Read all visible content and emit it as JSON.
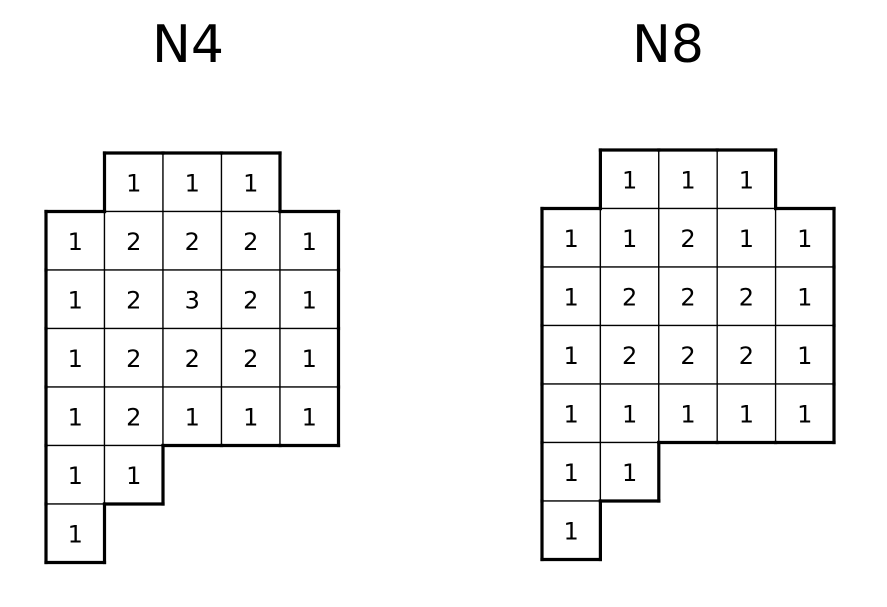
{
  "grids": [
    {
      "title": "N4",
      "rows": [
        [
          "",
          "1",
          "1",
          "1",
          ""
        ],
        [
          "1",
          "2",
          "2",
          "2",
          "1"
        ],
        [
          "1",
          "2",
          "3",
          "2",
          "1"
        ],
        [
          "1",
          "2",
          "2",
          "2",
          "1"
        ],
        [
          "1",
          "2",
          "1",
          "1",
          "1"
        ],
        [
          "1",
          "1",
          "",
          "",
          ""
        ],
        [
          "1",
          "",
          "",
          "",
          ""
        ]
      ]
    },
    {
      "title": "N8",
      "rows": [
        [
          "",
          "1",
          "1",
          "1",
          ""
        ],
        [
          "1",
          "1",
          "2",
          "1",
          "1"
        ],
        [
          "1",
          "2",
          "2",
          "2",
          "1"
        ],
        [
          "1",
          "2",
          "2",
          "2",
          "1"
        ],
        [
          "1",
          "1",
          "1",
          "1",
          "1"
        ],
        [
          "1",
          "1",
          "",
          "",
          ""
        ],
        [
          "1",
          "",
          "",
          "",
          ""
        ]
      ]
    }
  ]
}
